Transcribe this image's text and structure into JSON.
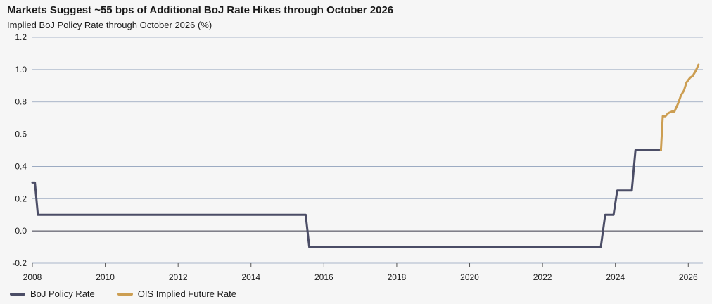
{
  "colors": {
    "policy": "#4b4d66",
    "ois": "#cc9e52",
    "grid": "#8fa0ba",
    "zero": "#3a3a4a"
  },
  "chart_data": {
    "type": "line",
    "title": "Markets Suggest ~55 bps of Additional BoJ Rate Hikes through October 2026",
    "subtitle": "Implied BoJ Policy Rate through October 2026 (%)",
    "xlabel": "",
    "ylabel": "",
    "xlim": [
      2008,
      2026.4
    ],
    "ylim": [
      -0.2,
      1.2
    ],
    "x_ticks": [
      2008,
      2010,
      2012,
      2014,
      2016,
      2018,
      2020,
      2022,
      2024,
      2026
    ],
    "y_ticks": [
      -0.2,
      0.0,
      0.2,
      0.4,
      0.6,
      0.8,
      1.0,
      1.2
    ],
    "y_tick_labels": [
      "-0.2",
      "0.0",
      "0.2",
      "0.4",
      "0.6",
      "0.8",
      "1.0",
      "1.2"
    ],
    "grid": true,
    "legend_position": "bottom-left",
    "series": [
      {
        "name": "BoJ Policy Rate",
        "color_key": "policy",
        "points": [
          [
            2008.0,
            0.3
          ],
          [
            2008.07,
            0.3
          ],
          [
            2008.15,
            0.1
          ],
          [
            2015.5,
            0.1
          ],
          [
            2015.6,
            -0.1
          ],
          [
            2023.6,
            -0.1
          ],
          [
            2023.72,
            0.1
          ],
          [
            2023.95,
            0.1
          ],
          [
            2024.05,
            0.25
          ],
          [
            2024.45,
            0.25
          ],
          [
            2024.55,
            0.5
          ],
          [
            2025.25,
            0.5
          ]
        ]
      },
      {
        "name": "OIS Implied Future Rate",
        "color_key": "ois",
        "points": [
          [
            2025.25,
            0.5
          ],
          [
            2025.3,
            0.71
          ],
          [
            2025.37,
            0.71
          ],
          [
            2025.45,
            0.73
          ],
          [
            2025.55,
            0.74
          ],
          [
            2025.62,
            0.74
          ],
          [
            2025.72,
            0.79
          ],
          [
            2025.8,
            0.84
          ],
          [
            2025.88,
            0.87
          ],
          [
            2025.95,
            0.92
          ],
          [
            2026.05,
            0.95
          ],
          [
            2026.12,
            0.96
          ],
          [
            2026.2,
            0.99
          ],
          [
            2026.28,
            1.03
          ]
        ]
      }
    ]
  }
}
